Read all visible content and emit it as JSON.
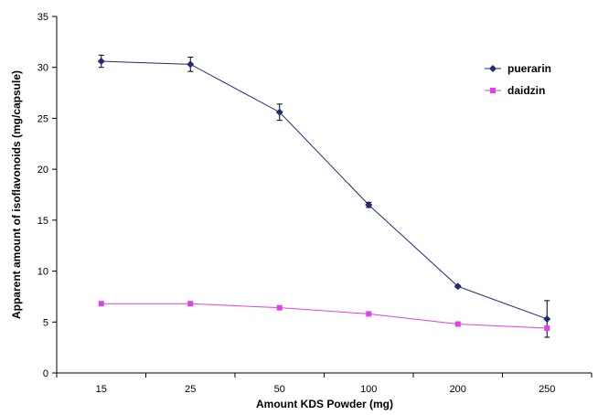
{
  "chart_data": {
    "type": "line",
    "title": "",
    "xlabel": "Amount KDS Powder (mg)",
    "ylabel": "Apparent amount of isoflavonoids (mg/capsule)",
    "categories": [
      "15",
      "25",
      "50",
      "100",
      "200",
      "250"
    ],
    "ylim": [
      0,
      35
    ],
    "yticks": [
      0,
      5,
      10,
      15,
      20,
      25,
      30,
      35
    ],
    "grid": false,
    "legend": "top-right",
    "series": [
      {
        "name": "puerarin",
        "color": "#1f2a7a",
        "marker": "diamond",
        "values": [
          30.6,
          30.3,
          25.6,
          16.5,
          8.5,
          5.3
        ],
        "error": [
          0.6,
          0.7,
          0.8,
          0.25,
          0.1,
          1.8
        ]
      },
      {
        "name": "daidzin",
        "color": "#e040e8",
        "marker": "square",
        "values": [
          6.8,
          6.8,
          6.4,
          5.8,
          4.8,
          4.4
        ],
        "error": [
          0,
          0,
          0,
          0,
          0,
          0
        ]
      }
    ]
  }
}
